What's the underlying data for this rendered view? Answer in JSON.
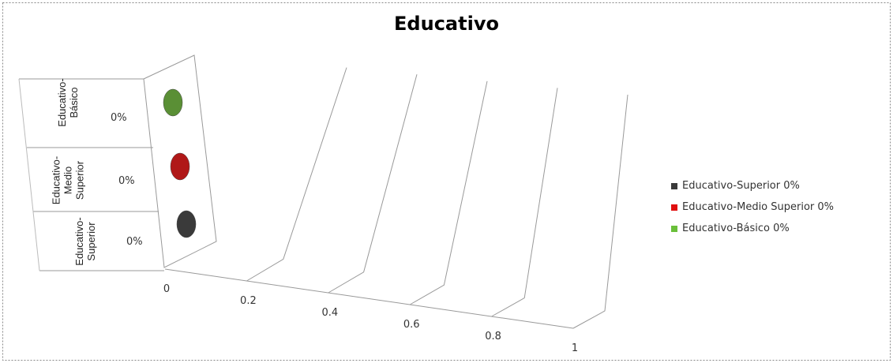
{
  "chart_data": {
    "type": "bar",
    "title": "Educativo",
    "categories": [
      "Educativo-Básico",
      "Educativo-Medio Superior",
      "Educativo-Superior"
    ],
    "category_lines": [
      [
        "Educativo-",
        "Básico"
      ],
      [
        "Educativo-",
        "Medio",
        "Superior"
      ],
      [
        "Educativo-",
        "Superior"
      ]
    ],
    "values": [
      0,
      0,
      0
    ],
    "value_labels": [
      "0%",
      "0%",
      "0%"
    ],
    "colors": [
      "#5a8f35",
      "#b01818",
      "#3a3a3a"
    ],
    "xlim": [
      0,
      1
    ],
    "ticks": [
      "0",
      "0.2",
      "0.4",
      "0.6",
      "0.8",
      "1"
    ],
    "grid": true,
    "legend_position": "right",
    "legend": [
      {
        "label": "Educativo-Superior 0%",
        "color": "#3a3a3a"
      },
      {
        "label": "Educativo-Medio Superior 0%",
        "color": "#e01010"
      },
      {
        "label": "Educativo-Básico 0%",
        "color": "#6abf3a"
      }
    ]
  }
}
